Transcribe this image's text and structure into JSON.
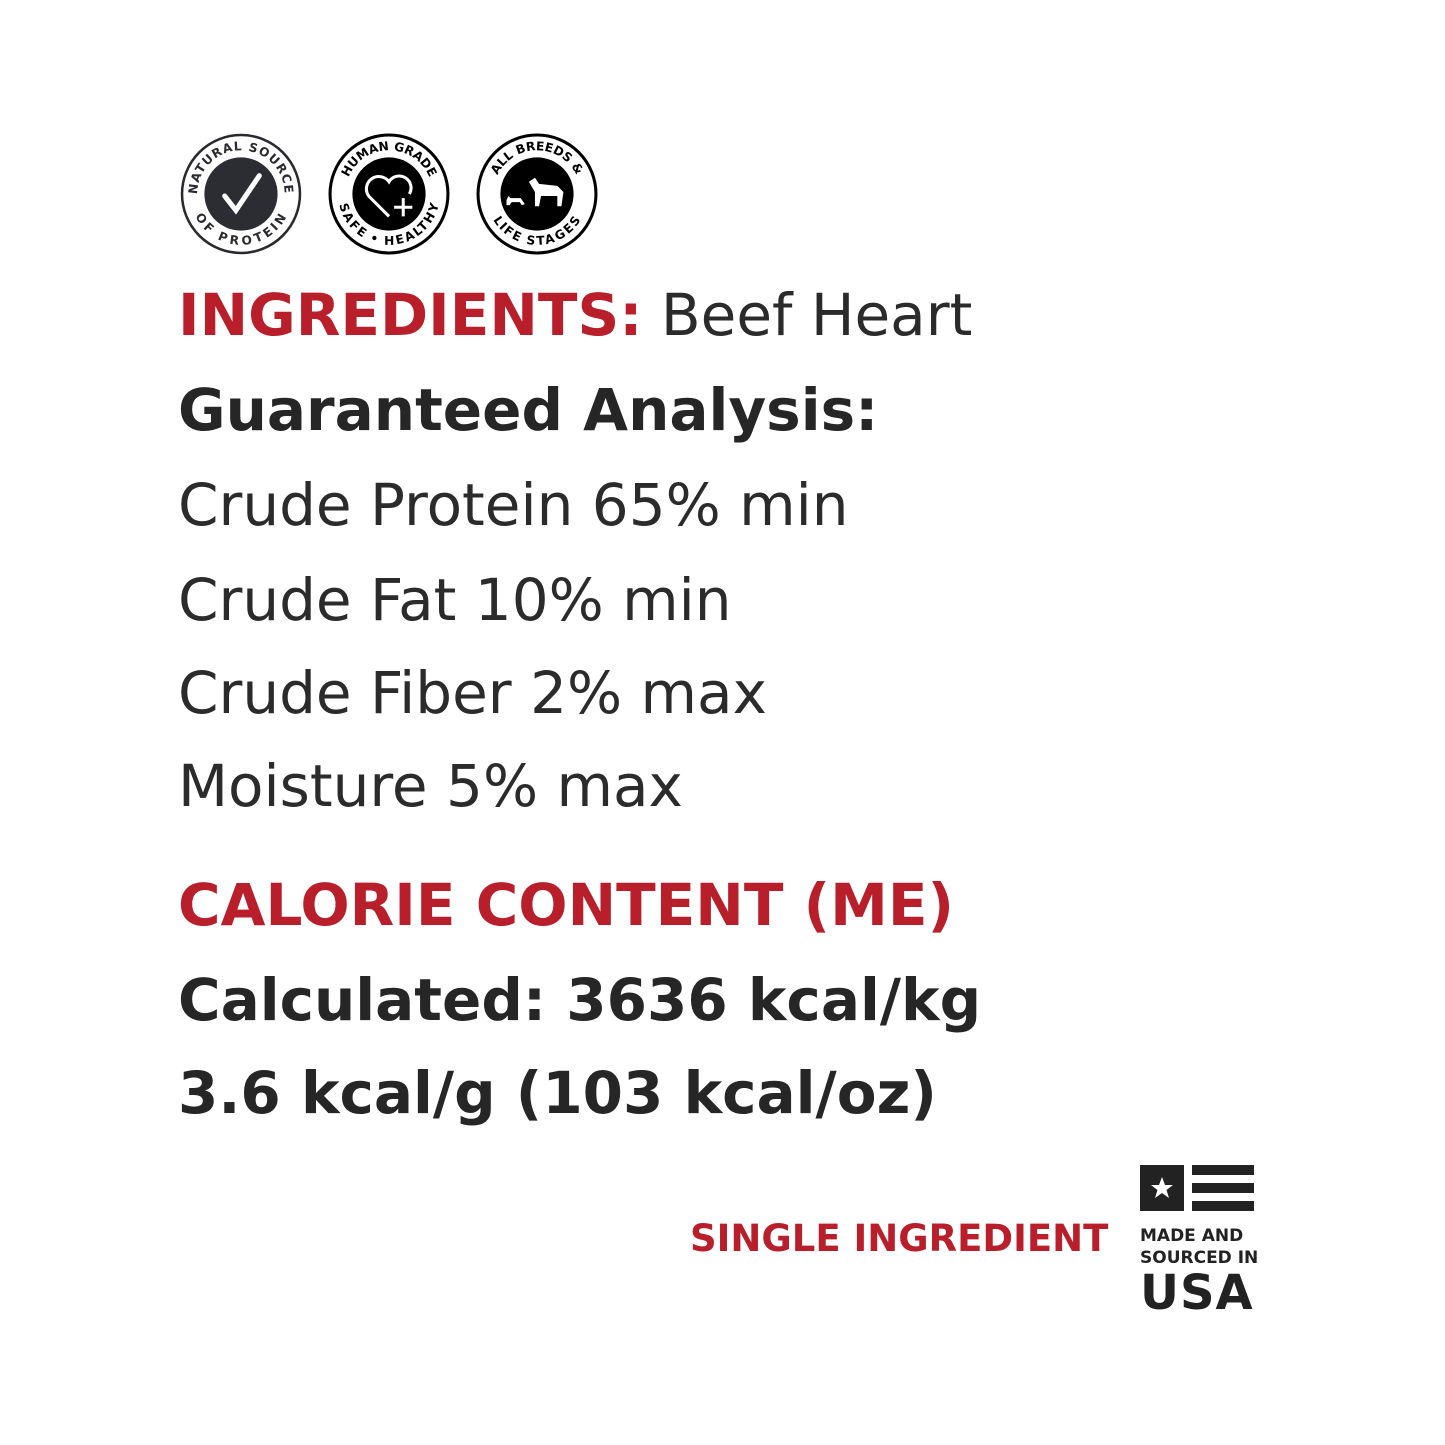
{
  "badges": [
    {
      "icon": "checkmark-icon",
      "top_text": "NATURAL SOURCE",
      "bottom_text": "OF PROTEIN"
    },
    {
      "icon": "heart-plus-icon",
      "top_text": "HUMAN GRADE",
      "bottom_text": "SAFE • HEALTHY"
    },
    {
      "icon": "dog-cat-icon",
      "top_text": "ALL BREEDS &",
      "bottom_text": "LIFE STAGES"
    }
  ],
  "ingredients": {
    "label": "INGREDIENTS:",
    "value": " Beef Heart"
  },
  "analysis": {
    "title": "Guaranteed Analysis:",
    "items": [
      "Crude Protein 65% min",
      "Crude Fat 10% min",
      "Crude Fiber 2% max",
      "Moisture 5% max"
    ]
  },
  "calories": {
    "title": "CALORIE CONTENT (ME)",
    "line1": "Calculated: 3636 kcal/kg",
    "line2": "3.6 kcal/g (103 kcal/oz)"
  },
  "footer": {
    "single": "SINGLE INGREDIENT",
    "usa_line1": "MADE AND",
    "usa_line2": "SOURCED IN",
    "usa_big": "USA"
  },
  "colors": {
    "accent": "#b81f2a",
    "text": "#2b2b2b"
  }
}
